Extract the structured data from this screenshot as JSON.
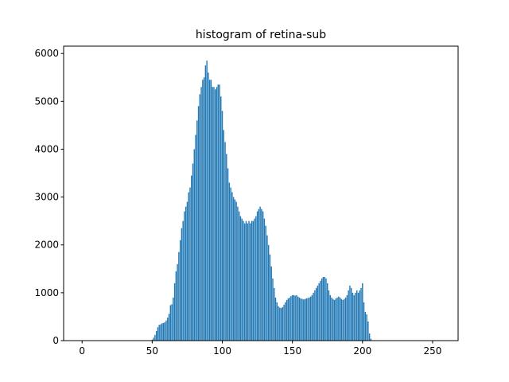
{
  "chart_data": {
    "type": "bar",
    "title": "histogram of retina-sub",
    "color": "#1f77b4",
    "x": [
      0,
      1,
      2,
      3,
      4,
      5,
      6,
      7,
      8,
      9,
      10,
      11,
      12,
      13,
      14,
      15,
      16,
      17,
      18,
      19,
      20,
      21,
      22,
      23,
      24,
      25,
      26,
      27,
      28,
      29,
      30,
      31,
      32,
      33,
      34,
      35,
      36,
      37,
      38,
      39,
      40,
      41,
      42,
      43,
      44,
      45,
      46,
      47,
      48,
      49,
      50,
      51,
      52,
      53,
      54,
      55,
      56,
      57,
      58,
      59,
      60,
      61,
      62,
      63,
      64,
      65,
      66,
      67,
      68,
      69,
      70,
      71,
      72,
      73,
      74,
      75,
      76,
      77,
      78,
      79,
      80,
      81,
      82,
      83,
      84,
      85,
      86,
      87,
      88,
      89,
      90,
      91,
      92,
      93,
      94,
      95,
      96,
      97,
      98,
      99,
      100,
      101,
      102,
      103,
      104,
      105,
      106,
      107,
      108,
      109,
      110,
      111,
      112,
      113,
      114,
      115,
      116,
      117,
      118,
      119,
      120,
      121,
      122,
      123,
      124,
      125,
      126,
      127,
      128,
      129,
      130,
      131,
      132,
      133,
      134,
      135,
      136,
      137,
      138,
      139,
      140,
      141,
      142,
      143,
      144,
      145,
      146,
      147,
      148,
      149,
      150,
      151,
      152,
      153,
      154,
      155,
      156,
      157,
      158,
      159,
      160,
      161,
      162,
      163,
      164,
      165,
      166,
      167,
      168,
      169,
      170,
      171,
      172,
      173,
      174,
      175,
      176,
      177,
      178,
      179,
      180,
      181,
      182,
      183,
      184,
      185,
      186,
      187,
      188,
      189,
      190,
      191,
      192,
      193,
      194,
      195,
      196,
      197,
      198,
      199,
      200,
      201,
      202,
      203,
      204,
      205,
      206,
      207,
      208,
      209,
      210,
      211,
      212,
      213,
      214,
      215,
      216,
      217,
      218,
      219,
      220,
      221,
      222,
      223,
      224,
      225,
      226,
      227,
      228,
      229,
      230,
      231,
      232,
      233,
      234,
      235,
      236,
      237,
      238,
      239,
      240,
      241,
      242,
      243,
      244,
      245,
      246,
      247,
      248,
      249,
      250,
      251,
      252,
      253,
      254,
      255
    ],
    "values": [
      0,
      0,
      0,
      0,
      0,
      0,
      0,
      0,
      0,
      0,
      0,
      0,
      0,
      0,
      0,
      0,
      0,
      0,
      0,
      0,
      0,
      0,
      0,
      0,
      0,
      0,
      0,
      0,
      0,
      0,
      0,
      0,
      0,
      0,
      0,
      0,
      0,
      0,
      0,
      0,
      0,
      0,
      0,
      0,
      0,
      0,
      0,
      0,
      0,
      0,
      20,
      60,
      120,
      200,
      280,
      330,
      340,
      360,
      370,
      380,
      420,
      480,
      560,
      740,
      760,
      900,
      1200,
      1450,
      1600,
      1850,
      2100,
      2350,
      2500,
      2700,
      2800,
      2900,
      3100,
      3200,
      3450,
      3700,
      4000,
      4300,
      4600,
      4900,
      5150,
      5300,
      5450,
      5500,
      5750,
      5850,
      5600,
      5450,
      5450,
      5300,
      5300,
      5250,
      5300,
      5350,
      5350,
      5100,
      4800,
      4400,
      4150,
      3900,
      3600,
      3300,
      3200,
      3100,
      3000,
      2950,
      2900,
      2800,
      2700,
      2600,
      2550,
      2500,
      2450,
      2500,
      2450,
      2500,
      2450,
      2500,
      2500,
      2550,
      2600,
      2700,
      2750,
      2800,
      2750,
      2700,
      2550,
      2400,
      2200,
      2000,
      1800,
      1550,
      1300,
      1100,
      900,
      800,
      720,
      690,
      680,
      700,
      750,
      800,
      850,
      880,
      900,
      930,
      950,
      950,
      940,
      950,
      920,
      900,
      880,
      870,
      860,
      870,
      880,
      890,
      900,
      920,
      950,
      1000,
      1050,
      1100,
      1150,
      1200,
      1250,
      1300,
      1330,
      1330,
      1300,
      1200,
      1050,
      950,
      900,
      870,
      850,
      880,
      900,
      920,
      900,
      870,
      850,
      870,
      900,
      950,
      1050,
      1150,
      1100,
      1000,
      950,
      1000,
      1050,
      1000,
      1050,
      1100,
      1200,
      800,
      600,
      550,
      400,
      150,
      40,
      0,
      0,
      0,
      0,
      0,
      0,
      0,
      0,
      0,
      0,
      0,
      0,
      0,
      0,
      0,
      0,
      0,
      0,
      0,
      0,
      0,
      0,
      0,
      0,
      0,
      0,
      0,
      0,
      0,
      0,
      0,
      0,
      0,
      0,
      0,
      0,
      0,
      0,
      0,
      0,
      0,
      0,
      0,
      0,
      0,
      0,
      0,
      0,
      0
    ],
    "xlim": [
      -13.19,
      268.19
    ],
    "xticks": [
      0,
      50,
      100,
      150,
      200,
      250
    ],
    "ylim": [
      0,
      6153
    ],
    "yticks": [
      0,
      1000,
      2000,
      3000,
      4000,
      5000,
      6000
    ]
  }
}
